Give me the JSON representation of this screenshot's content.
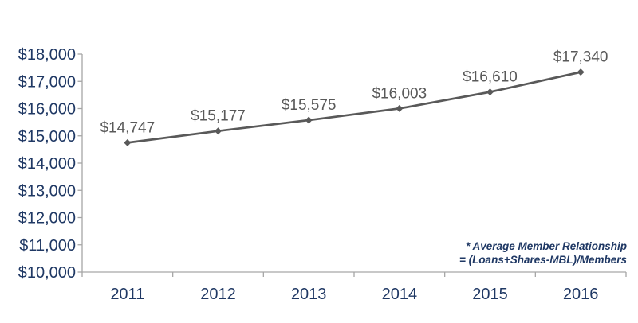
{
  "chart_data": {
    "type": "line",
    "categories": [
      "2011",
      "2012",
      "2013",
      "2014",
      "2015",
      "2016"
    ],
    "series": [
      {
        "name": "Average Member Relationship",
        "values": [
          14747,
          15177,
          15575,
          16003,
          16610,
          17340
        ]
      }
    ],
    "data_labels": [
      "$14,747",
      "$15,177",
      "$15,575",
      "$16,003",
      "$16,610",
      "$17,340"
    ],
    "y_ticks": [
      {
        "value": 10000,
        "label": "$10,000"
      },
      {
        "value": 11000,
        "label": "$11,000"
      },
      {
        "value": 12000,
        "label": "$12,000"
      },
      {
        "value": 13000,
        "label": "$13,000"
      },
      {
        "value": 14000,
        "label": "$14,000"
      },
      {
        "value": 15000,
        "label": "$15,000"
      },
      {
        "value": 16000,
        "label": "$16,000"
      },
      {
        "value": 17000,
        "label": "$17,000"
      },
      {
        "value": 18000,
        "label": "$18,000"
      }
    ],
    "ylim": [
      10000,
      18000
    ],
    "title": "",
    "xlabel": "",
    "ylabel": "",
    "grid": false,
    "legend": "none",
    "annotation": {
      "line1": "* Average Member Relationship",
      "line2": "= (Loans+Shares-MBL)/Members"
    },
    "colors": {
      "line": "#595959",
      "marker": "#595959",
      "data_label": "#595959",
      "axis_line": "#A6A6A6",
      "tick_label": "#1F3864",
      "annotation": "#1F3864",
      "background": "#FFFFFF"
    }
  }
}
